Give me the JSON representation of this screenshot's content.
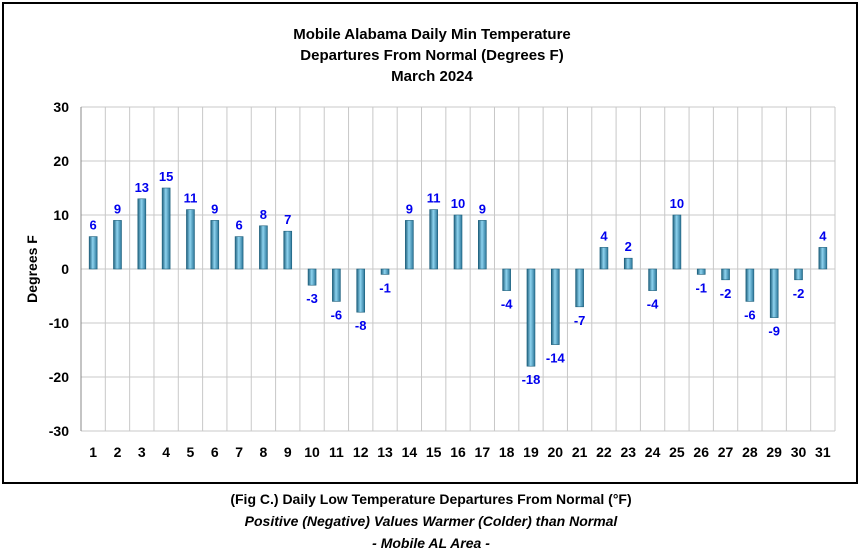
{
  "chart_data": {
    "type": "bar",
    "title_lines": [
      "Mobile Alabama Daily Min Temperature",
      "Departures From Normal (Degrees F)",
      "March 2024"
    ],
    "ylabel": "Degrees F",
    "xlabel": "",
    "ylim": [
      -30,
      30
    ],
    "yticks": [
      30,
      20,
      10,
      0,
      -10,
      -20,
      -30
    ],
    "grid": true,
    "categories": [
      "1",
      "2",
      "3",
      "4",
      "5",
      "6",
      "7",
      "8",
      "9",
      "10",
      "11",
      "12",
      "13",
      "14",
      "15",
      "16",
      "17",
      "18",
      "19",
      "20",
      "21",
      "22",
      "23",
      "24",
      "25",
      "26",
      "27",
      "28",
      "29",
      "30",
      "31"
    ],
    "values": [
      6,
      9,
      13,
      15,
      11,
      9,
      6,
      8,
      7,
      -3,
      -6,
      -8,
      -1,
      9,
      11,
      10,
      9,
      -4,
      -18,
      -14,
      -7,
      4,
      2,
      -4,
      10,
      -1,
      -2,
      -6,
      -9,
      -2,
      4
    ],
    "colors": {
      "bar": "#3f93b8",
      "bar_light": "#8ed3ef",
      "bar_dark": "#1d5f7c",
      "data_label": "#0000ee",
      "grid": "#c8c8c8"
    }
  },
  "caption": {
    "line1": "(Fig C.) Daily Low Temperature Departures From Normal (°F)",
    "line2": "Positive (Negative) Values Warmer (Colder) than Normal",
    "line3": "- Mobile AL Area -"
  }
}
